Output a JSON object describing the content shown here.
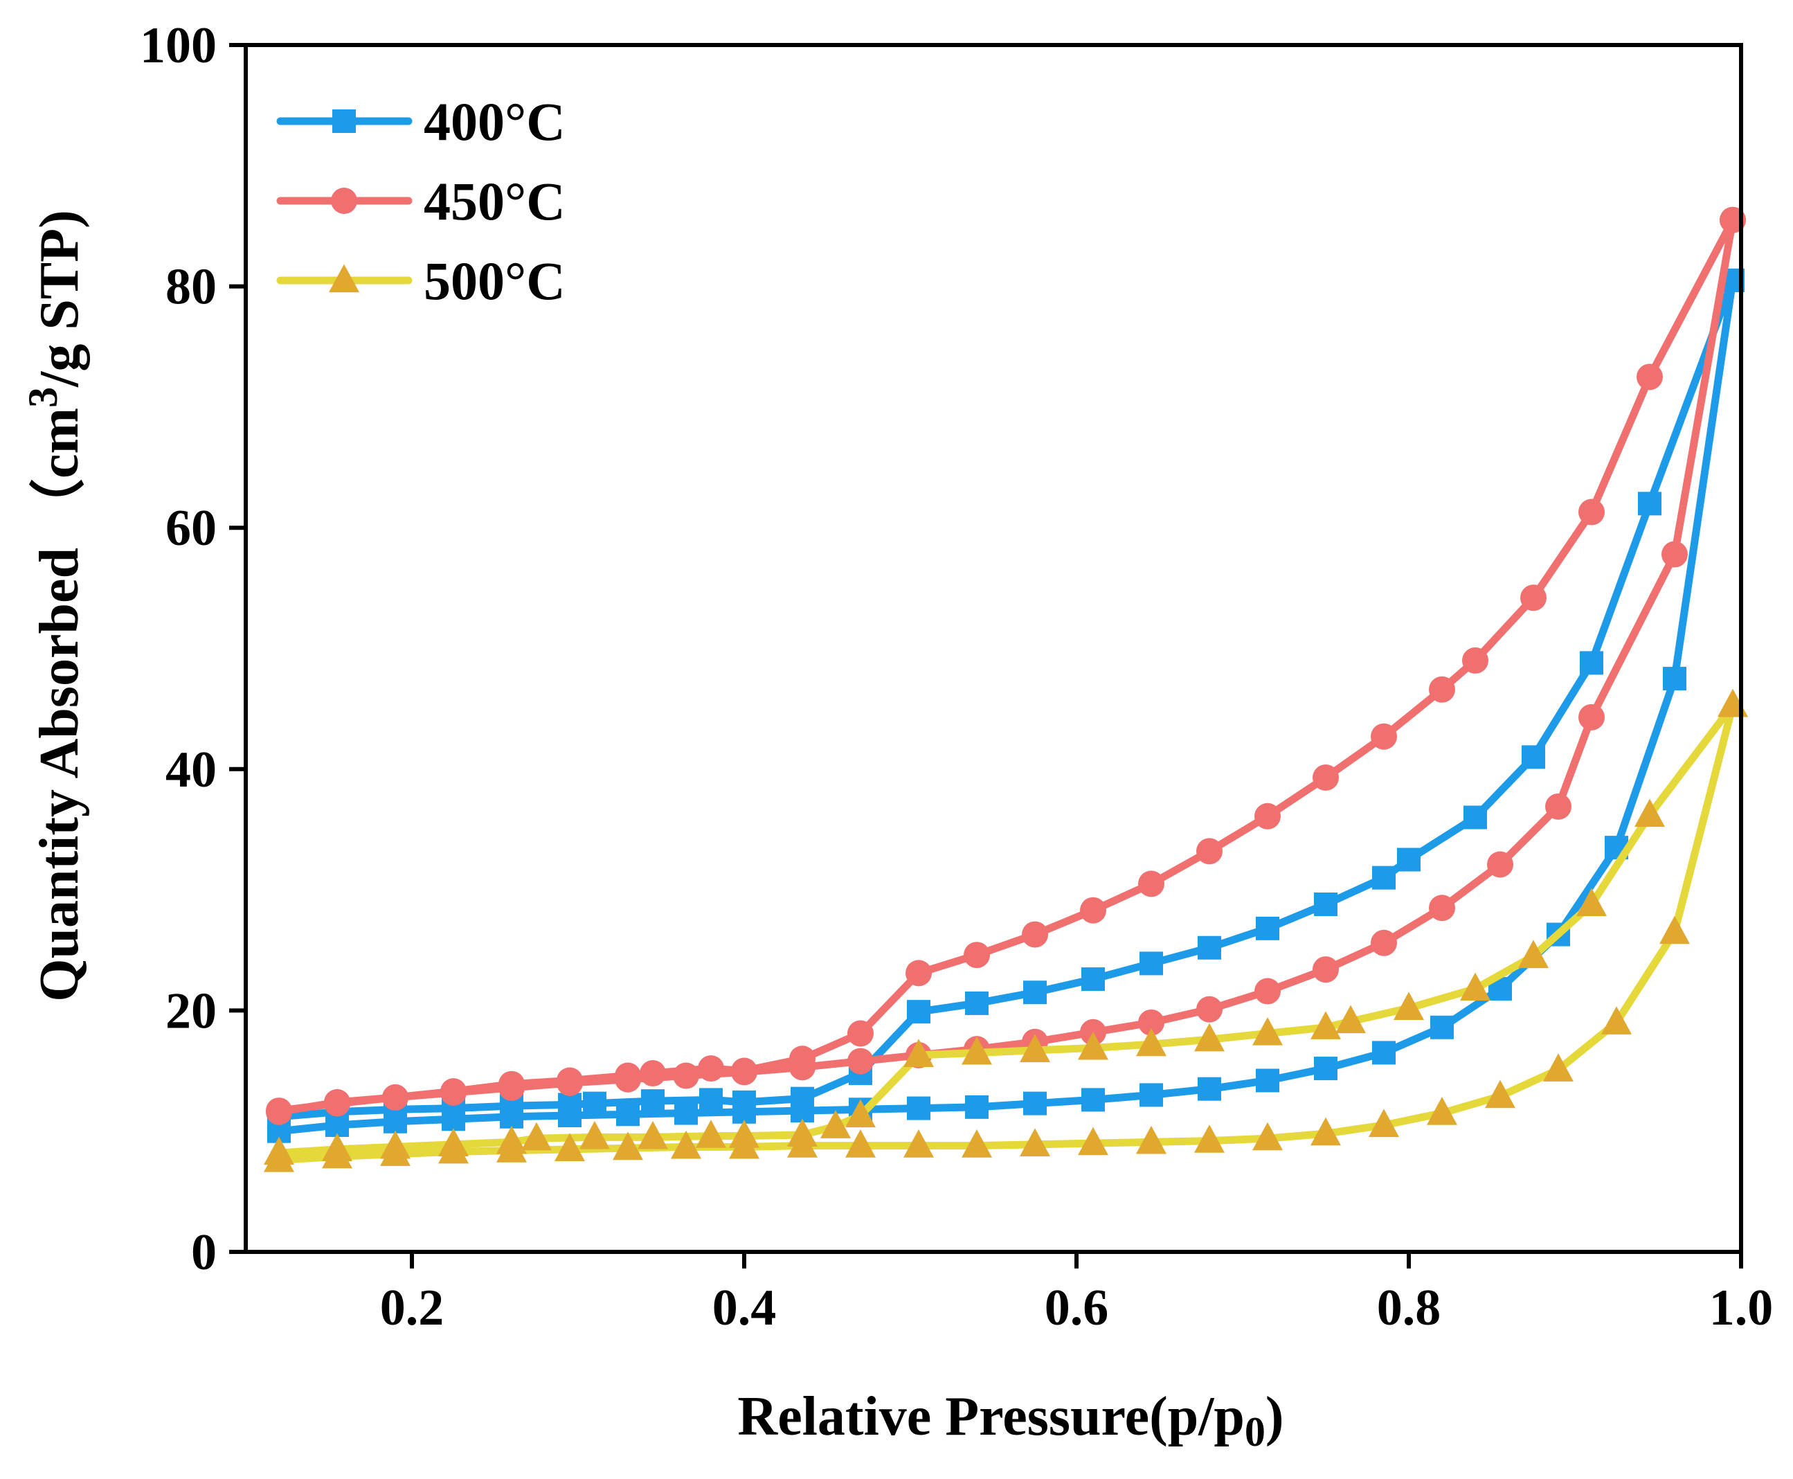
{
  "chart_data": {
    "type": "line",
    "title": "",
    "xlabel": "Relative Pressure(p/p",
    "xlabel_sub": "0",
    "xlabel_close": ")",
    "ylabel_main": "Quantity Absorbed",
    "ylabel_unit_open": "（cm",
    "ylabel_unit_sup": "3",
    "ylabel_unit_close": "/g STP)",
    "xlim": [
      0.1,
      1.0
    ],
    "ylim": [
      0,
      100
    ],
    "xticks": [
      0.2,
      0.4,
      0.6,
      0.8,
      1.0
    ],
    "xtick_labels": [
      "0.2",
      "0.4",
      "0.6",
      "0.8",
      "1.0"
    ],
    "yticks": [
      0,
      20,
      40,
      60,
      80,
      100
    ],
    "ytick_labels": [
      "0",
      "20",
      "40",
      "60",
      "80",
      "100"
    ],
    "legend_position": "top-left",
    "series": [
      {
        "name": "400°C",
        "color": "#1E9BE8",
        "marker": "square",
        "adsorption": [
          [
            0.12,
            10.0
          ],
          [
            0.155,
            10.5
          ],
          [
            0.19,
            10.8
          ],
          [
            0.225,
            11.0
          ],
          [
            0.26,
            11.2
          ],
          [
            0.295,
            11.3
          ],
          [
            0.33,
            11.4
          ],
          [
            0.365,
            11.5
          ],
          [
            0.4,
            11.6
          ],
          [
            0.435,
            11.7
          ],
          [
            0.47,
            11.8
          ],
          [
            0.505,
            11.9
          ],
          [
            0.54,
            12.0
          ],
          [
            0.575,
            12.3
          ],
          [
            0.61,
            12.6
          ],
          [
            0.645,
            13.0
          ],
          [
            0.68,
            13.5
          ],
          [
            0.715,
            14.2
          ],
          [
            0.75,
            15.2
          ],
          [
            0.785,
            16.5
          ],
          [
            0.82,
            18.6
          ],
          [
            0.855,
            21.8
          ],
          [
            0.89,
            26.3
          ],
          [
            0.925,
            33.5
          ],
          [
            0.96,
            47.5
          ],
          [
            0.995,
            80.5
          ]
        ],
        "desorption": [
          [
            0.995,
            80.5
          ],
          [
            0.945,
            62.0
          ],
          [
            0.91,
            48.8
          ],
          [
            0.875,
            41.0
          ],
          [
            0.84,
            36.0
          ],
          [
            0.8,
            32.5
          ],
          [
            0.785,
            31.0
          ],
          [
            0.75,
            28.8
          ],
          [
            0.715,
            26.8
          ],
          [
            0.68,
            25.2
          ],
          [
            0.645,
            23.9
          ],
          [
            0.61,
            22.6
          ],
          [
            0.575,
            21.5
          ],
          [
            0.54,
            20.6
          ],
          [
            0.505,
            19.9
          ],
          [
            0.47,
            14.8
          ],
          [
            0.435,
            12.7
          ],
          [
            0.4,
            12.4
          ],
          [
            0.38,
            12.6
          ],
          [
            0.345,
            12.5
          ],
          [
            0.31,
            12.3
          ],
          [
            0.295,
            12.2
          ],
          [
            0.26,
            12.1
          ],
          [
            0.225,
            11.9
          ],
          [
            0.19,
            11.8
          ],
          [
            0.155,
            11.6
          ],
          [
            0.12,
            11.2
          ]
        ]
      },
      {
        "name": "450°C",
        "color": "#F07070",
        "marker": "circle",
        "adsorption": [
          [
            0.12,
            11.7
          ],
          [
            0.155,
            12.3
          ],
          [
            0.19,
            12.8
          ],
          [
            0.225,
            13.2
          ],
          [
            0.26,
            13.6
          ],
          [
            0.295,
            14.0
          ],
          [
            0.33,
            14.3
          ],
          [
            0.365,
            14.6
          ],
          [
            0.4,
            14.9
          ],
          [
            0.435,
            15.3
          ],
          [
            0.47,
            15.8
          ],
          [
            0.505,
            16.3
          ],
          [
            0.54,
            16.8
          ],
          [
            0.575,
            17.4
          ],
          [
            0.61,
            18.2
          ],
          [
            0.645,
            19.0
          ],
          [
            0.68,
            20.1
          ],
          [
            0.715,
            21.6
          ],
          [
            0.75,
            23.4
          ],
          [
            0.785,
            25.6
          ],
          [
            0.82,
            28.5
          ],
          [
            0.855,
            32.1
          ],
          [
            0.89,
            36.9
          ],
          [
            0.91,
            44.3
          ],
          [
            0.96,
            57.8
          ],
          [
            0.995,
            85.5
          ]
        ],
        "desorption": [
          [
            0.995,
            85.5
          ],
          [
            0.945,
            72.5
          ],
          [
            0.91,
            61.3
          ],
          [
            0.875,
            54.2
          ],
          [
            0.84,
            49.0
          ],
          [
            0.82,
            46.6
          ],
          [
            0.785,
            42.7
          ],
          [
            0.75,
            39.3
          ],
          [
            0.715,
            36.1
          ],
          [
            0.68,
            33.2
          ],
          [
            0.645,
            30.5
          ],
          [
            0.61,
            28.3
          ],
          [
            0.575,
            26.3
          ],
          [
            0.54,
            24.6
          ],
          [
            0.505,
            23.1
          ],
          [
            0.47,
            18.1
          ],
          [
            0.435,
            16.0
          ],
          [
            0.4,
            15.0
          ],
          [
            0.38,
            15.2
          ],
          [
            0.345,
            14.8
          ],
          [
            0.33,
            14.6
          ],
          [
            0.295,
            14.2
          ],
          [
            0.26,
            13.9
          ],
          [
            0.225,
            13.3
          ],
          [
            0.19,
            12.8
          ],
          [
            0.155,
            12.4
          ],
          [
            0.12,
            11.6
          ]
        ]
      },
      {
        "name": "500°C",
        "color": "#E5D83A",
        "marker_color": "#E0A82E",
        "marker": "triangle",
        "adsorption": [
          [
            0.12,
            7.6
          ],
          [
            0.155,
            7.9
          ],
          [
            0.19,
            8.1
          ],
          [
            0.225,
            8.3
          ],
          [
            0.26,
            8.4
          ],
          [
            0.295,
            8.5
          ],
          [
            0.33,
            8.6
          ],
          [
            0.365,
            8.7
          ],
          [
            0.4,
            8.7
          ],
          [
            0.435,
            8.8
          ],
          [
            0.47,
            8.8
          ],
          [
            0.505,
            8.8
          ],
          [
            0.54,
            8.8
          ],
          [
            0.575,
            8.9
          ],
          [
            0.61,
            9.0
          ],
          [
            0.645,
            9.1
          ],
          [
            0.68,
            9.2
          ],
          [
            0.715,
            9.4
          ],
          [
            0.75,
            9.8
          ],
          [
            0.785,
            10.5
          ],
          [
            0.82,
            11.5
          ],
          [
            0.855,
            12.9
          ],
          [
            0.89,
            15.1
          ],
          [
            0.925,
            19.0
          ],
          [
            0.96,
            26.5
          ],
          [
            0.995,
            45.3
          ]
        ],
        "desorption": [
          [
            0.995,
            45.3
          ],
          [
            0.945,
            36.2
          ],
          [
            0.91,
            28.8
          ],
          [
            0.875,
            24.5
          ],
          [
            0.84,
            21.8
          ],
          [
            0.8,
            20.2
          ],
          [
            0.765,
            19.1
          ],
          [
            0.75,
            18.6
          ],
          [
            0.715,
            18.1
          ],
          [
            0.68,
            17.6
          ],
          [
            0.645,
            17.2
          ],
          [
            0.61,
            16.9
          ],
          [
            0.575,
            16.7
          ],
          [
            0.54,
            16.5
          ],
          [
            0.505,
            16.3
          ],
          [
            0.47,
            11.3
          ],
          [
            0.455,
            10.4
          ],
          [
            0.435,
            9.7
          ],
          [
            0.4,
            9.6
          ],
          [
            0.38,
            9.6
          ],
          [
            0.345,
            9.5
          ],
          [
            0.31,
            9.5
          ],
          [
            0.275,
            9.4
          ],
          [
            0.26,
            9.1
          ],
          [
            0.225,
            8.9
          ],
          [
            0.19,
            8.7
          ],
          [
            0.155,
            8.5
          ],
          [
            0.12,
            8.2
          ]
        ]
      }
    ]
  }
}
